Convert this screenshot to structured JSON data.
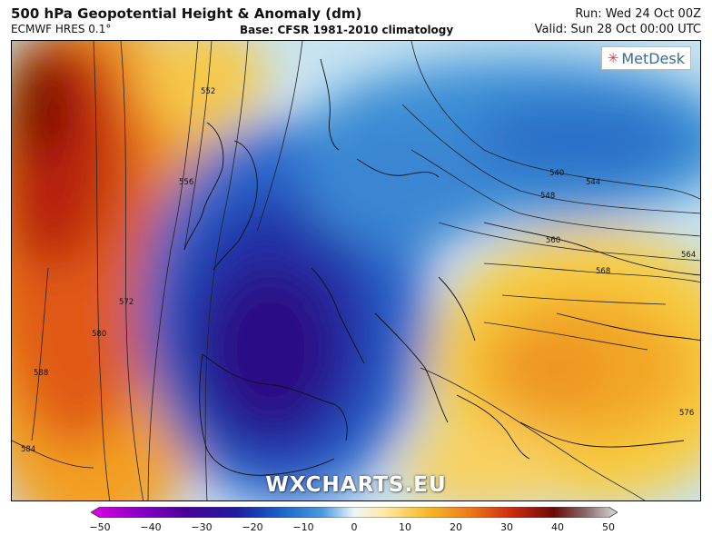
{
  "header": {
    "title": "500 hPa Geopotential Height & Anomaly (dm)",
    "model": "ECMWF HRES 0.1°",
    "base": "Base: CFSR 1981-2010 climatology",
    "run": "Run: Wed 24 Oct 00Z",
    "valid": "Valid: Sun 28 Oct 00:00 UTC"
  },
  "map": {
    "logo_text": "MetDesk",
    "logo_icon": "metdesk-star-icon",
    "watermark": "WXCHARTS.EU",
    "contour_labels": [
      "552",
      "556",
      "572",
      "580",
      "588",
      "584",
      "540",
      "544",
      "548",
      "560",
      "564",
      "568",
      "576"
    ]
  },
  "colorbar": {
    "min": -50,
    "max": 50,
    "tick_labels": [
      "−50",
      "−40",
      "−30",
      "−20",
      "−10",
      "0",
      "10",
      "20",
      "30",
      "40",
      "50"
    ],
    "colors": [
      "#e000e0",
      "#6a00b0",
      "#2a0090",
      "#1a3ac8",
      "#2a8ad8",
      "#a8d4ee",
      "#fff3b0",
      "#f8c020",
      "#f08018",
      "#d02010",
      "#6a0a06",
      "#d8d8d8"
    ]
  }
}
